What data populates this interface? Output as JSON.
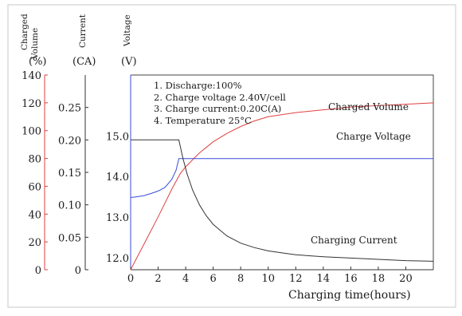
{
  "chart_data": {
    "type": "line",
    "xlabel": "Charging time(hours)",
    "xlim": [
      0,
      22
    ],
    "x_ticks": [
      "0",
      "2",
      "4",
      "6",
      "8",
      "10",
      "12",
      "14",
      "16",
      "18",
      "20"
    ],
    "axes": {
      "charged_volume": {
        "title_lines": [
          "Charged",
          "Volume"
        ],
        "unit": "(%)",
        "range": [
          0,
          140
        ],
        "ticks": [
          "0",
          "20",
          "40",
          "60",
          "80",
          "100",
          "120",
          "140"
        ]
      },
      "current": {
        "title": "Current",
        "unit": "(CA)",
        "range": [
          0,
          0.3
        ],
        "ticks": [
          "0",
          "0.05",
          "0.10",
          "0.15",
          "0.20",
          "0.25"
        ]
      },
      "voltage": {
        "title": "Voltage",
        "unit": "(V)",
        "range": [
          11.7,
          16.5
        ],
        "ticks": [
          "12.0",
          "13.0",
          "14.0",
          "15.0"
        ]
      }
    },
    "conditions": [
      "1. Discharge:100%",
      "2. Charge voltage 2.40V/cell",
      "3. Charge current:0.20C(A)",
      "4. Temperature 25°C"
    ],
    "series": [
      {
        "name": "Charged Volume",
        "axis": "charged_volume",
        "color": "#e04040",
        "x": [
          0,
          1,
          2,
          3,
          3.6,
          4,
          5,
          6,
          7,
          8,
          9,
          10,
          12,
          14,
          16,
          18,
          20,
          22
        ],
        "y": [
          0,
          19,
          38,
          58,
          69,
          74,
          84,
          92,
          98,
          103,
          107,
          110,
          113,
          115,
          117,
          118,
          119,
          120
        ]
      },
      {
        "name": "Charge Voltage",
        "axis": "voltage",
        "color": "#3a4cd8",
        "x": [
          0,
          0.5,
          1,
          1.5,
          2,
          2.5,
          3,
          3.3,
          3.5,
          3.7,
          4,
          6,
          10,
          16,
          22
        ],
        "y": [
          13.48,
          13.5,
          13.53,
          13.58,
          13.64,
          13.73,
          13.93,
          14.15,
          14.44,
          14.44,
          14.44,
          14.44,
          14.44,
          14.44,
          14.44
        ]
      },
      {
        "name": "Charging Current",
        "axis": "current",
        "color": "#333333",
        "x": [
          0,
          1,
          2,
          3,
          3.5,
          3.8,
          4.1,
          4.5,
          5,
          5.5,
          6,
          7,
          8,
          9,
          10,
          11,
          12,
          14,
          16,
          18,
          20,
          22
        ],
        "y": [
          0.2,
          0.2,
          0.2,
          0.2,
          0.2,
          0.172,
          0.148,
          0.123,
          0.1,
          0.083,
          0.07,
          0.052,
          0.041,
          0.034,
          0.029,
          0.026,
          0.023,
          0.02,
          0.018,
          0.016,
          0.014,
          0.013
        ]
      }
    ]
  }
}
